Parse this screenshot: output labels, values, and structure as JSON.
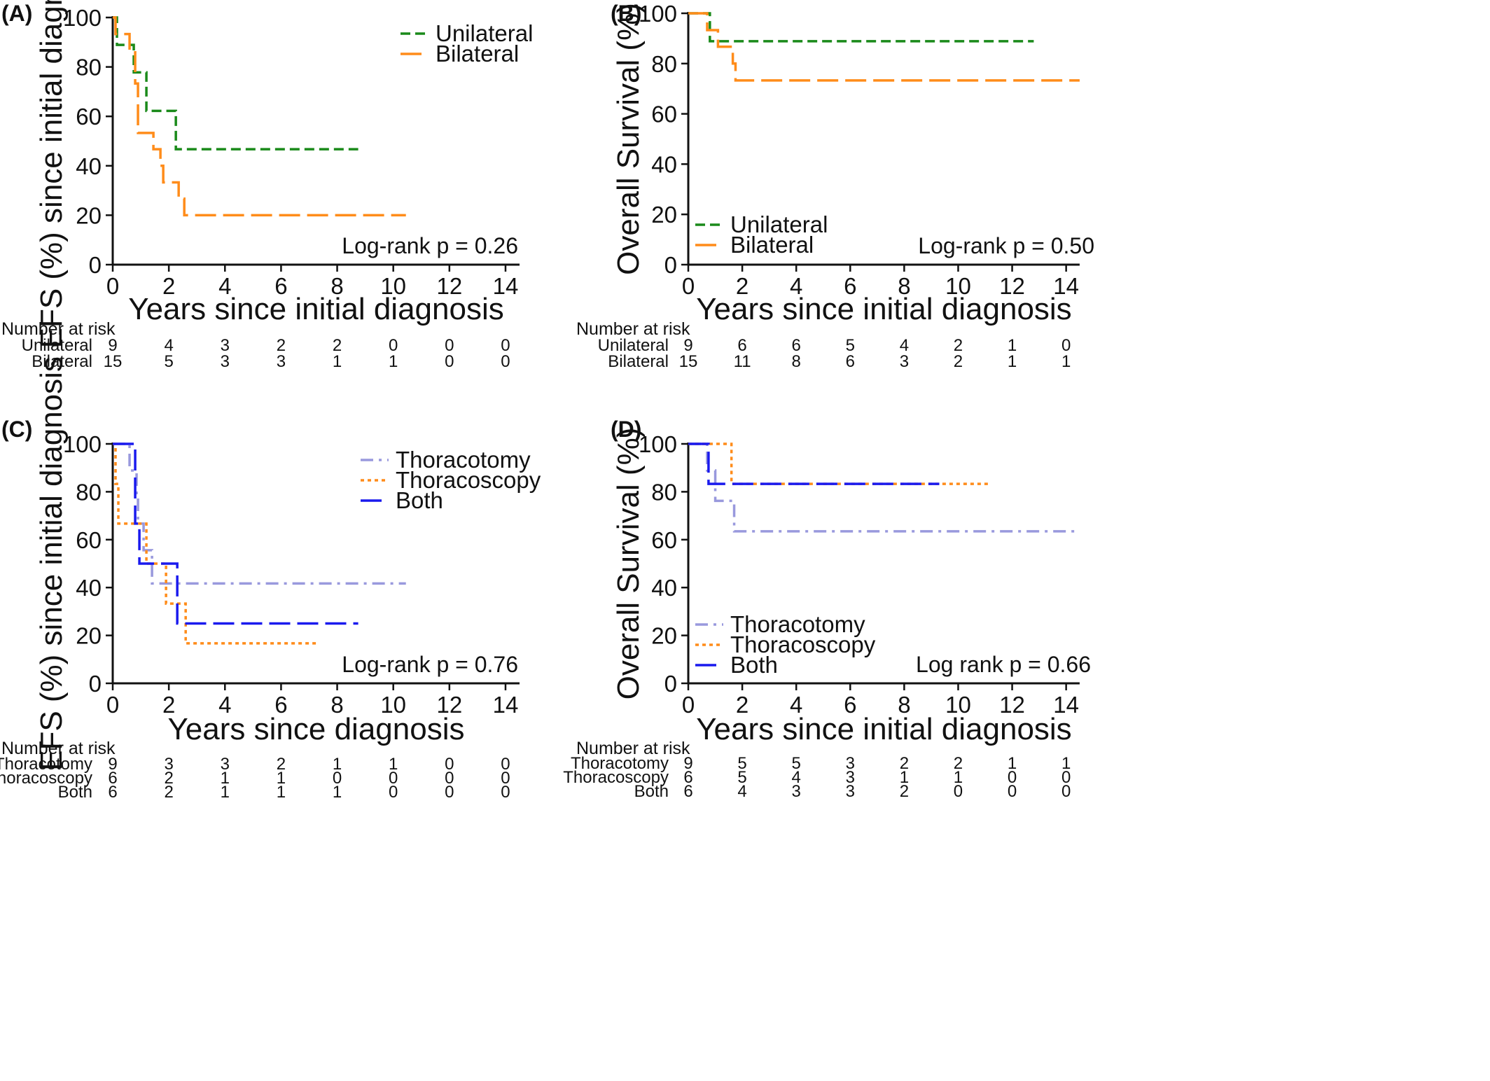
{
  "colors": {
    "unilateral": "#1a8a1a",
    "bilateral": "#ff8c1a",
    "thoracotomy": "#9999dd",
    "thoracoscopy": "#ff8c1a",
    "both": "#1a1aee",
    "axis": "#111111"
  },
  "chart_data": [
    {
      "type": "line",
      "panel_label": "(A)",
      "xlabel": "Years since initial diagnosis",
      "ylabel": "EFS (%) since initial diagnosis",
      "xlim": [
        0,
        14.5
      ],
      "ylim": [
        0,
        100
      ],
      "xticks": [
        0,
        2,
        4,
        6,
        8,
        10,
        12,
        14
      ],
      "yticks": [
        0,
        20,
        40,
        60,
        80,
        100
      ],
      "legend_position": "top-right",
      "annotation": "Log-rank p = 0.26",
      "series": [
        {
          "name": "Unilateral",
          "color_key": "unilateral",
          "dash": "short",
          "steps": [
            [
              0,
              100
            ],
            [
              0.15,
              88.9
            ],
            [
              0.75,
              77.8
            ],
            [
              1.2,
              62.2
            ],
            [
              2.25,
              46.7
            ],
            [
              8.75,
              46.7
            ]
          ]
        },
        {
          "name": "Bilateral",
          "color_key": "bilateral",
          "dash": "long",
          "steps": [
            [
              0,
              100
            ],
            [
              0.1,
              93.3
            ],
            [
              0.6,
              86.7
            ],
            [
              0.8,
              73.3
            ],
            [
              0.9,
              53.3
            ],
            [
              1.45,
              46.7
            ],
            [
              1.7,
              40
            ],
            [
              1.8,
              33.3
            ],
            [
              2.35,
              26.7
            ],
            [
              2.55,
              20
            ],
            [
              10.45,
              20
            ]
          ]
        }
      ],
      "risk_table": {
        "title": "Number at risk",
        "times": [
          0,
          2,
          4,
          6,
          8,
          10,
          12,
          14
        ],
        "rows": [
          {
            "label": "Unilateral",
            "values": [
              "9",
              "4",
              "3",
              "2",
              "2",
              "0",
              "0",
              "0"
            ]
          },
          {
            "label": "Bilateral",
            "values": [
              "15",
              "5",
              "3",
              "3",
              "1",
              "1",
              "0",
              "0"
            ]
          }
        ]
      }
    },
    {
      "type": "line",
      "panel_label": "(B)",
      "xlabel": "Years since initial diagnosis",
      "ylabel": "Overall Survival (%)",
      "xlim": [
        0,
        14.5
      ],
      "ylim": [
        0,
        100
      ],
      "xticks": [
        0,
        2,
        4,
        6,
        8,
        10,
        12,
        14
      ],
      "yticks": [
        0,
        20,
        40,
        60,
        80,
        100
      ],
      "legend_position": "bottom-left",
      "annotation": "Log-rank p = 0.50",
      "series": [
        {
          "name": "Unilateral",
          "color_key": "unilateral",
          "dash": "short",
          "steps": [
            [
              0,
              100
            ],
            [
              0.8,
              88.9
            ],
            [
              12.8,
              88.9
            ]
          ]
        },
        {
          "name": "Bilateral",
          "color_key": "bilateral",
          "dash": "long",
          "steps": [
            [
              0,
              100
            ],
            [
              0.7,
              93.3
            ],
            [
              1.1,
              86.7
            ],
            [
              1.65,
              80
            ],
            [
              1.75,
              73.3
            ],
            [
              14.5,
              73.3
            ]
          ]
        }
      ],
      "risk_table": {
        "title": "Number at risk",
        "times": [
          0,
          2,
          4,
          6,
          8,
          10,
          12,
          14
        ],
        "rows": [
          {
            "label": "Unilateral",
            "values": [
              "9",
              "6",
              "6",
              "5",
              "4",
              "2",
              "1",
              "0"
            ]
          },
          {
            "label": "Bilateral",
            "values": [
              "15",
              "11",
              "8",
              "6",
              "3",
              "2",
              "1",
              "1"
            ]
          }
        ]
      }
    },
    {
      "type": "line",
      "panel_label": "(C)",
      "xlabel": "Years since diagnosis",
      "ylabel": "EFS (%) since initial diagnosis",
      "xlim": [
        0,
        14.5
      ],
      "ylim": [
        0,
        100
      ],
      "xticks": [
        0,
        2,
        4,
        6,
        8,
        10,
        12,
        14
      ],
      "yticks": [
        0,
        20,
        40,
        60,
        80,
        100
      ],
      "legend_position": "top-right",
      "annotation": "Log-rank p = 0.76",
      "series": [
        {
          "name": "Thoracotomy",
          "color_key": "thoracotomy",
          "dash": "dashdot",
          "steps": [
            [
              0,
              100
            ],
            [
              0.6,
              88.9
            ],
            [
              0.85,
              77.8
            ],
            [
              0.9,
              66.7
            ],
            [
              1.1,
              55.6
            ],
            [
              1.4,
              41.7
            ],
            [
              10.45,
              41.7
            ]
          ]
        },
        {
          "name": "Thoracoscopy",
          "color_key": "thoracoscopy",
          "dash": "dot",
          "steps": [
            [
              0,
              100
            ],
            [
              0.1,
              83.3
            ],
            [
              0.2,
              66.7
            ],
            [
              1.2,
              50
            ],
            [
              1.9,
              33.3
            ],
            [
              2.6,
              16.7
            ],
            [
              7.3,
              16.7
            ]
          ]
        },
        {
          "name": "Both",
          "color_key": "both",
          "dash": "long",
          "steps": [
            [
              0,
              100
            ],
            [
              0.8,
              66.7
            ],
            [
              0.95,
              50
            ],
            [
              2.3,
              25
            ],
            [
              8.75,
              25
            ]
          ]
        }
      ],
      "risk_table": {
        "title": "Number at risk",
        "times": [
          0,
          2,
          4,
          6,
          8,
          10,
          12,
          14
        ],
        "rows": [
          {
            "label": "Thoracotomy",
            "values": [
              "9",
              "3",
              "3",
              "2",
              "1",
              "1",
              "0",
              "0"
            ]
          },
          {
            "label": "Thoracoscopy",
            "values": [
              "6",
              "2",
              "1",
              "1",
              "0",
              "0",
              "0",
              "0"
            ]
          },
          {
            "label": "Both",
            "values": [
              "6",
              "2",
              "1",
              "1",
              "1",
              "0",
              "0",
              "0"
            ]
          }
        ]
      }
    },
    {
      "type": "line",
      "panel_label": "(D)",
      "xlabel": "Years since initial diagnosis",
      "ylabel": "Overall Survival (%)",
      "xlim": [
        0,
        14.5
      ],
      "ylim": [
        0,
        100
      ],
      "xticks": [
        0,
        2,
        4,
        6,
        8,
        10,
        12,
        14
      ],
      "yticks": [
        0,
        20,
        40,
        60,
        80,
        100
      ],
      "legend_position": "bottom-left",
      "annotation": "Log rank p = 0.66",
      "series": [
        {
          "name": "Thoracotomy",
          "color_key": "thoracotomy",
          "dash": "dashdot",
          "steps": [
            [
              0,
              100
            ],
            [
              0.7,
              88.9
            ],
            [
              1.0,
              76.2
            ],
            [
              1.7,
              63.5
            ],
            [
              14.5,
              63.5
            ]
          ]
        },
        {
          "name": "Thoracoscopy",
          "color_key": "thoracoscopy",
          "dash": "dot",
          "steps": [
            [
              0,
              100
            ],
            [
              1.6,
              83.3
            ],
            [
              11.1,
              83.3
            ]
          ]
        },
        {
          "name": "Both",
          "color_key": "both",
          "dash": "long",
          "steps": [
            [
              0,
              100
            ],
            [
              0.75,
              83.3
            ],
            [
              9.3,
              83.3
            ]
          ]
        }
      ],
      "risk_table": {
        "title": "Number at risk",
        "times": [
          0,
          2,
          4,
          6,
          8,
          10,
          12,
          14
        ],
        "rows": [
          {
            "label": "Thoracotomy",
            "values": [
              "9",
              "5",
              "5",
              "3",
              "2",
              "2",
              "1",
              "1"
            ]
          },
          {
            "label": "Thoracoscopy",
            "values": [
              "6",
              "5",
              "4",
              "3",
              "1",
              "1",
              "0",
              "0"
            ]
          },
          {
            "label": "Both",
            "values": [
              "6",
              "4",
              "3",
              "3",
              "2",
              "0",
              "0",
              "0"
            ]
          }
        ]
      }
    }
  ]
}
